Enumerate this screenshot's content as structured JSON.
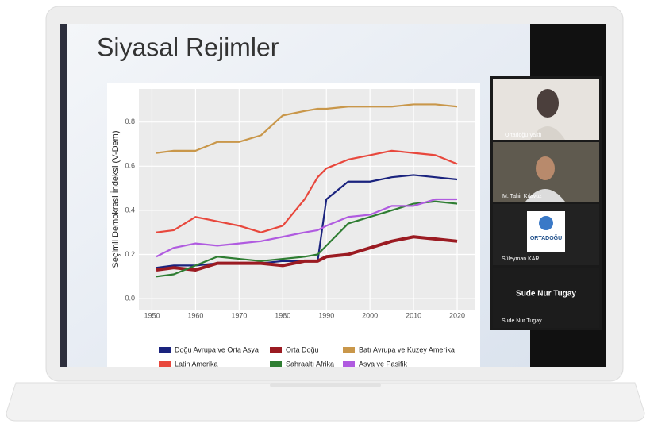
{
  "slide": {
    "title": "Siyasal Rejimler"
  },
  "chart_data": {
    "type": "line",
    "y_label": "Seçimli Demokrasi İndeksi (V-Dem)",
    "x": [
      1951,
      1955,
      1960,
      1965,
      1970,
      1975,
      1980,
      1985,
      1988,
      1990,
      1995,
      2000,
      2005,
      2010,
      2015,
      2020
    ],
    "series": [
      {
        "name": "Doğu Avrupa ve Orta Asya",
        "color": "#1a237e",
        "values": [
          0.14,
          0.15,
          0.15,
          0.16,
          0.16,
          0.16,
          0.17,
          0.17,
          0.17,
          0.45,
          0.53,
          0.53,
          0.55,
          0.56,
          0.55,
          0.54
        ]
      },
      {
        "name": "Orta Doğu",
        "color": "#9b1b22",
        "values": [
          0.13,
          0.14,
          0.13,
          0.16,
          0.16,
          0.16,
          0.15,
          0.17,
          0.17,
          0.19,
          0.2,
          0.23,
          0.26,
          0.28,
          0.27,
          0.26
        ]
      },
      {
        "name": "Batı Avrupa ve Kuzey Amerika",
        "color": "#c9974a",
        "values": [
          0.66,
          0.67,
          0.67,
          0.71,
          0.71,
          0.74,
          0.83,
          0.85,
          0.86,
          0.86,
          0.87,
          0.87,
          0.87,
          0.88,
          0.88,
          0.87
        ]
      },
      {
        "name": "Latin Amerika",
        "color": "#e8473c",
        "values": [
          0.3,
          0.31,
          0.37,
          0.35,
          0.33,
          0.3,
          0.33,
          0.45,
          0.55,
          0.59,
          0.63,
          0.65,
          0.67,
          0.66,
          0.65,
          0.61
        ]
      },
      {
        "name": "Sahraaltı Afrika",
        "color": "#2e7d32",
        "values": [
          0.1,
          0.11,
          0.15,
          0.19,
          0.18,
          0.17,
          0.18,
          0.19,
          0.2,
          0.24,
          0.34,
          0.37,
          0.4,
          0.43,
          0.44,
          0.43
        ]
      },
      {
        "name": "Asya ve Pasifik",
        "color": "#b05be0",
        "values": [
          0.19,
          0.23,
          0.25,
          0.24,
          0.25,
          0.26,
          0.28,
          0.3,
          0.31,
          0.33,
          0.37,
          0.38,
          0.42,
          0.42,
          0.45,
          0.45
        ]
      }
    ],
    "xlim": [
      1947,
      2024
    ],
    "xticks": [
      1950,
      1960,
      1970,
      1980,
      1990,
      2000,
      2010,
      2020
    ],
    "ylim": [
      -0.05,
      0.95
    ],
    "yticks": [
      {
        "value": 0,
        "label": "0.0"
      },
      0.2,
      0.4,
      0.6,
      0.8
    ],
    "grid": true
  },
  "participants": [
    {
      "label": "Ortadoğu Vakfı"
    },
    {
      "label": "M. Tahir Kılavuz"
    },
    {
      "logo": "ORTADOĞU",
      "label": "Süleyman KAR"
    },
    {
      "display_name": "Sude Nur Tugay",
      "label": "Sude Nur Tugay"
    }
  ]
}
